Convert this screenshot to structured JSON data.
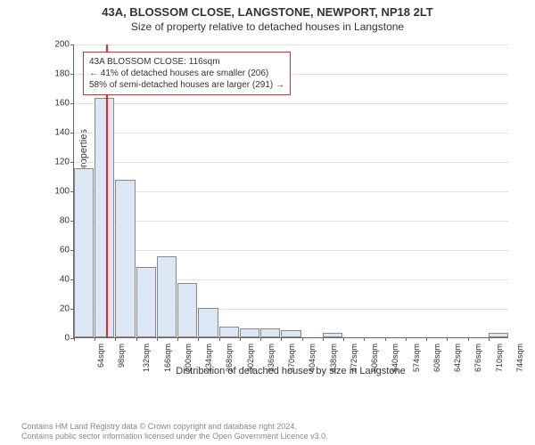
{
  "title": "43A, BLOSSOM CLOSE, LANGSTONE, NEWPORT, NP18 2LT",
  "subtitle": "Size of property relative to detached houses in Langstone",
  "chart": {
    "type": "histogram",
    "ylabel": "Number of detached properties",
    "xlabel": "Distribution of detached houses by size in Langstone",
    "ylim": [
      0,
      200
    ],
    "ytick_step": 20,
    "yticks": [
      0,
      20,
      40,
      60,
      80,
      100,
      120,
      140,
      160,
      180,
      200
    ],
    "xtick_labels": [
      "64sqm",
      "98sqm",
      "132sqm",
      "166sqm",
      "200sqm",
      "234sqm",
      "268sqm",
      "302sqm",
      "336sqm",
      "370sqm",
      "404sqm",
      "438sqm",
      "472sqm",
      "506sqm",
      "540sqm",
      "574sqm",
      "608sqm",
      "642sqm",
      "676sqm",
      "710sqm",
      "744sqm"
    ],
    "bar_values": [
      115,
      163,
      107,
      48,
      55,
      37,
      20,
      7,
      6,
      6,
      5,
      0,
      3,
      0,
      0,
      0,
      0,
      0,
      0,
      0,
      3
    ],
    "bar_color": "#dbe7f5",
    "bar_border_color": "#888888",
    "grid_color": "#e0e0e0",
    "background_color": "#ffffff",
    "highlight_line": {
      "value_sqm": 116,
      "color": "#ee2222"
    },
    "annotation": {
      "lines": [
        "43A BLOSSOM CLOSE: 116sqm",
        "← 41% of detached houses are smaller (206)",
        "58% of semi-detached houses are larger (291) →"
      ],
      "border_color": "#cc3333",
      "background_color": "#ffffff",
      "fontsize": 10
    }
  },
  "footer": {
    "line1": "Contains HM Land Registry data © Crown copyright and database right 2024.",
    "line2": "Contains public sector information licensed under the Open Government Licence v3.0."
  }
}
